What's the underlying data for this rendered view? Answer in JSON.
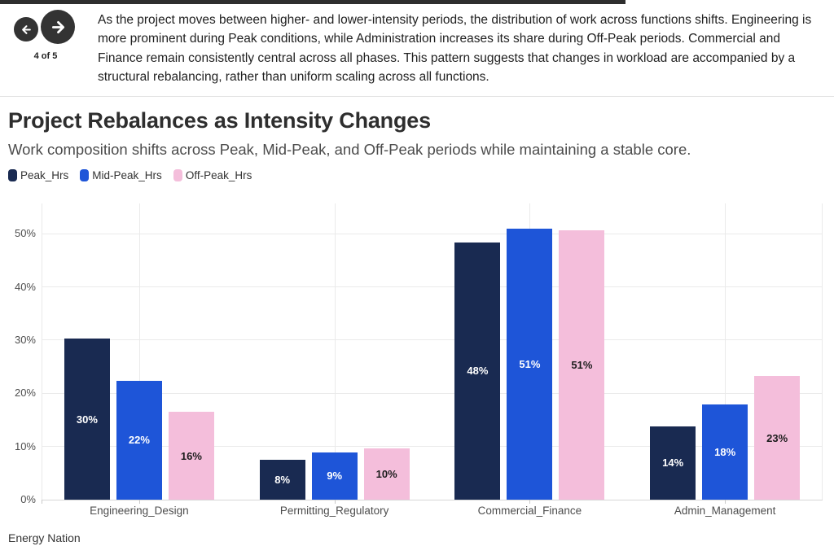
{
  "nav": {
    "pagination": "4 of 5",
    "back_icon": "arrow-left-icon",
    "forward_icon": "arrow-right-icon"
  },
  "summary": "As the project moves between higher- and lower-intensity periods, the distribution of work across functions shifts. Engineering is more prominent during Peak conditions, while Administration increases its share during Off-Peak periods. Commercial and Finance remain consistently central across all phases. This pattern suggests that changes in workload are accompanied by a structural rebalancing, rather than uniform scaling across all functions.",
  "title": "Project Rebalances as Intensity Changes",
  "subtitle": "Work composition shifts across Peak, Mid-Peak, and Off-Peak periods while maintaining a stable core.",
  "footer": {
    "source": "Energy Nation"
  },
  "colors": {
    "accent_bar": "#2e2e2e",
    "nav_button": "#333333",
    "grid": "#eaeaea"
  },
  "chart_data": {
    "type": "bar",
    "title": "Project Rebalances as Intensity Changes",
    "subtitle": "Work composition shifts across Peak, Mid-Peak, and Off-Peak periods while maintaining a stable core.",
    "categories": [
      "Engineering_Design",
      "Permitting_Regulatory",
      "Commercial_Finance",
      "Admin_Management"
    ],
    "series": [
      {
        "name": "Peak_Hrs",
        "color": "#192a51",
        "label_color": "#ffffff",
        "values": [
          30.3,
          7.5,
          48.4,
          13.8
        ],
        "labels": [
          "30%",
          "8%",
          "48%",
          "14%"
        ]
      },
      {
        "name": "Mid-Peak_Hrs",
        "color": "#1e55d8",
        "label_color": "#ffffff",
        "values": [
          22.4,
          8.9,
          50.9,
          17.9
        ],
        "labels": [
          "22%",
          "9%",
          "51%",
          "18%"
        ]
      },
      {
        "name": "Off-Peak_Hrs",
        "color": "#f4bedb",
        "label_color": "#1c1c1c",
        "values": [
          16.5,
          9.7,
          50.7,
          23.2
        ],
        "labels": [
          "16%",
          "10%",
          "51%",
          "23%"
        ]
      }
    ],
    "ylabel": "",
    "xlabel": "",
    "yticks": [
      0,
      10,
      20,
      30,
      40,
      50
    ],
    "ytick_labels": [
      "0%",
      "10%",
      "20%",
      "30%",
      "40%",
      "50%"
    ],
    "ylim": [
      0,
      55.7
    ],
    "grid": true,
    "legend_position": "top-left",
    "source": "Energy Nation"
  }
}
